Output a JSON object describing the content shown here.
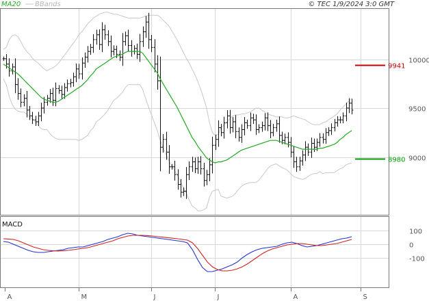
{
  "header": {
    "ma_label": "MA20",
    "bb_label": "BBands",
    "source": "© TEC 1/9/2024 3:0 GMT"
  },
  "colors": {
    "bars": "#111111",
    "ma20": "#22aa22",
    "bbands": "#c8c8c8",
    "macd": "#2233cc",
    "signal": "#cc2222",
    "resistance": "#cc0000",
    "support": "#009900",
    "grid": "#d8d8d8"
  },
  "chart_data": [
    {
      "type": "ohlc",
      "name": "price",
      "y_tick_labels": [
        "9000",
        "9500",
        "10000"
      ],
      "y_ticks": [
        9000,
        9500,
        10000
      ],
      "ylim": [
        8500,
        10500
      ],
      "x_tick_labels": [
        "A",
        "M",
        "J",
        "J",
        "A",
        "S"
      ],
      "levels": [
        {
          "name": "resistance",
          "value": 9941,
          "label": "9941"
        },
        {
          "name": "support",
          "value": 8980,
          "label": "8980"
        }
      ],
      "series": {
        "close": [
          10005,
          9950,
          9880,
          9920,
          9740,
          9650,
          9560,
          9600,
          9480,
          9420,
          9380,
          9360,
          9420,
          9500,
          9560,
          9600,
          9650,
          9580,
          9700,
          9680,
          9640,
          9710,
          9750,
          9760,
          9820,
          9900,
          9850,
          9960,
          10020,
          10080,
          10120,
          10200,
          10250,
          10150,
          10300,
          10250,
          10180,
          10080,
          10100,
          10050,
          10020,
          10180,
          10240,
          10140,
          10080,
          10110,
          10050,
          10180,
          10280,
          10380,
          10200,
          10120,
          9950,
          9780,
          9100,
          9180,
          9050,
          8900,
          8900,
          8820,
          8720,
          8640,
          8650,
          8820,
          8900,
          8950,
          8880,
          8950,
          8880,
          8760,
          8820,
          8920,
          9120,
          9180,
          9300,
          9250,
          9350,
          9420,
          9300,
          9360,
          9260,
          9200,
          9280,
          9350,
          9320,
          9400,
          9380,
          9280,
          9300,
          9320,
          9400,
          9320,
          9250,
          9300,
          9340,
          9220,
          9170,
          9200,
          9150,
          9050,
          8950,
          8900,
          8960,
          9020,
          9100,
          9050,
          9140,
          9100,
          9150,
          9200,
          9180,
          9250,
          9270,
          9300,
          9350,
          9380,
          9380,
          9420,
          9500,
          9550,
          9480
        ]
      },
      "ma20": [
        9950,
        9930,
        9910,
        9890,
        9870,
        9850,
        9820,
        9790,
        9760,
        9730,
        9700,
        9670,
        9640,
        9610,
        9590,
        9580,
        9570,
        9560,
        9560,
        9570,
        9590,
        9610,
        9630,
        9650,
        9670,
        9690,
        9710,
        9730,
        9760,
        9790,
        9830,
        9860,
        9900,
        9920,
        9940,
        9960,
        9980,
        10000,
        10020,
        10030,
        10040,
        10050,
        10070,
        10080,
        10080,
        10080,
        10080,
        10080,
        10060,
        10020,
        9980,
        9940,
        9900,
        9860,
        9800,
        9750,
        9700,
        9650,
        9600,
        9550,
        9500,
        9440,
        9380,
        9320,
        9260,
        9200,
        9160,
        9110,
        9070,
        9030,
        8990,
        8970,
        8950,
        8940,
        8950,
        8950,
        8960,
        8970,
        8990,
        9010,
        9030,
        9050,
        9070,
        9080,
        9090,
        9100,
        9110,
        9120,
        9130,
        9140,
        9150,
        9160,
        9170,
        9170,
        9170,
        9160,
        9150,
        9140,
        9130,
        9120,
        9110,
        9100,
        9090,
        9080,
        9080,
        9080,
        9080,
        9080,
        9080,
        9090,
        9090,
        9100,
        9110,
        9120,
        9130,
        9150,
        9180,
        9200,
        9230,
        9250,
        9270
      ],
      "bband_upper": [
        10100,
        10120,
        10200,
        10240,
        10250,
        10230,
        10180,
        10120,
        10080,
        10050,
        10010,
        9980,
        9960,
        9930,
        9900,
        9880,
        9900,
        9910,
        9930,
        9960,
        10000,
        10040,
        10080,
        10120,
        10160,
        10200,
        10250,
        10280,
        10320,
        10360,
        10390,
        10420,
        10440,
        10460,
        10470,
        10480,
        10480,
        10470,
        10460,
        10460,
        10450,
        10440,
        10430,
        10420,
        10420,
        10420,
        10420,
        10420,
        10430,
        10440,
        10450,
        10450,
        10450,
        10450,
        10430,
        10400,
        10370,
        10340,
        10290,
        10240,
        10190,
        10130,
        10070,
        10010,
        9960,
        9900,
        9840,
        9770,
        9690,
        9600,
        9500,
        9350,
        9250,
        9220,
        9230,
        9300,
        9330,
        9360,
        9390,
        9420,
        9430,
        9430,
        9440,
        9440,
        9450,
        9460,
        9480,
        9500,
        9500,
        9480,
        9460,
        9440,
        9430,
        9420,
        9410,
        9410,
        9410,
        9400,
        9400,
        9410,
        9420,
        9410,
        9400,
        9390,
        9380,
        9360,
        9340,
        9330,
        9330,
        9330,
        9350,
        9360,
        9380,
        9400,
        9420,
        9440,
        9480,
        9510,
        9540,
        9570,
        9600
      ],
      "bband_lower": [
        9800,
        9740,
        9620,
        9540,
        9490,
        9470,
        9460,
        9460,
        9440,
        9410,
        9390,
        9360,
        9320,
        9290,
        9280,
        9280,
        9240,
        9210,
        9190,
        9180,
        9180,
        9180,
        9180,
        9180,
        9180,
        9180,
        9170,
        9180,
        9200,
        9220,
        9270,
        9300,
        9360,
        9380,
        9410,
        9440,
        9480,
        9530,
        9580,
        9600,
        9630,
        9660,
        9710,
        9740,
        9740,
        9740,
        9740,
        9740,
        9690,
        9600,
        9510,
        9430,
        9350,
        9270,
        9170,
        9100,
        9030,
        8960,
        8910,
        8860,
        8810,
        8750,
        8690,
        8630,
        8560,
        8500,
        8480,
        8450,
        8450,
        8460,
        8480,
        8590,
        8650,
        8660,
        8670,
        8600,
        8590,
        8580,
        8590,
        8600,
        8630,
        8670,
        8700,
        8720,
        8730,
        8740,
        8740,
        8740,
        8760,
        8800,
        8840,
        8880,
        8910,
        8920,
        8930,
        8910,
        8890,
        8880,
        8860,
        8830,
        8800,
        8790,
        8780,
        8770,
        8780,
        8800,
        8820,
        8830,
        8830,
        8850,
        8830,
        8840,
        8840,
        8840,
        8840,
        8860,
        8880,
        8890,
        8920,
        8930,
        8940
      ]
    },
    {
      "type": "line",
      "name": "MACD",
      "title": "MACD",
      "y_tick_labels": [
        "100",
        "0",
        "-100"
      ],
      "y_ticks": [
        100,
        0,
        -100
      ],
      "ylim": [
        -230,
        160
      ],
      "series": [
        {
          "values": [
            20,
            15,
            0,
            -15,
            -30,
            -45,
            -55,
            -60,
            -60,
            -55,
            -50,
            -45,
            -40,
            -30,
            -25,
            -20,
            -20,
            -10,
            0,
            10,
            20,
            35,
            45,
            55,
            70,
            80,
            75,
            65,
            60,
            55,
            50,
            45,
            40,
            35,
            30,
            25,
            20,
            10,
            -40,
            -110,
            -170,
            -200,
            -200,
            -190,
            -180,
            -165,
            -150,
            -130,
            -100,
            -75,
            -55,
            -40,
            -30,
            -25,
            -20,
            -15,
            0,
            10,
            15,
            5,
            -10,
            -20,
            -15,
            -10,
            0,
            10,
            20,
            30,
            40,
            45,
            55
          ]
        },
        {
          "values": [
            40,
            38,
            35,
            25,
            10,
            -5,
            -20,
            -30,
            -40,
            -45,
            -48,
            -50,
            -48,
            -45,
            -40,
            -35,
            -30,
            -25,
            -15,
            -5,
            5,
            15,
            25,
            40,
            50,
            60,
            65,
            65,
            65,
            63,
            60,
            55,
            52,
            48,
            44,
            40,
            35,
            30,
            10,
            -30,
            -80,
            -130,
            -165,
            -185,
            -195,
            -195,
            -190,
            -180,
            -165,
            -145,
            -120,
            -95,
            -70,
            -50,
            -35,
            -25,
            -15,
            -5,
            0,
            5,
            5,
            0,
            -5,
            -10,
            -10,
            -5,
            0,
            5,
            15,
            25,
            35
          ]
        }
      ]
    }
  ]
}
